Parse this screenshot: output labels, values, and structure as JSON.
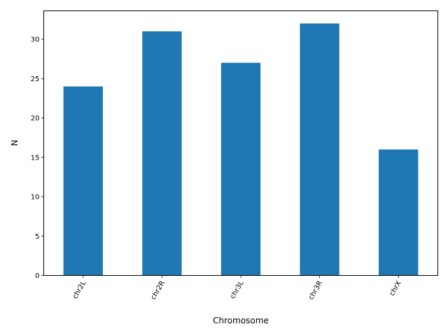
{
  "chart_data": {
    "type": "bar",
    "categories": [
      "chr2L",
      "chr2R",
      "chr3L",
      "chr3R",
      "chrX"
    ],
    "values": [
      24,
      31,
      27,
      32,
      16
    ],
    "xlabel": "Chromosome",
    "ylabel": "N",
    "ylim": [
      0,
      33.6
    ],
    "yticks": [
      0,
      5,
      10,
      15,
      20,
      25,
      30
    ],
    "xtick_rotation_deg": 60,
    "bar_color": "#1f77b4",
    "grid": false,
    "legend": "none"
  }
}
